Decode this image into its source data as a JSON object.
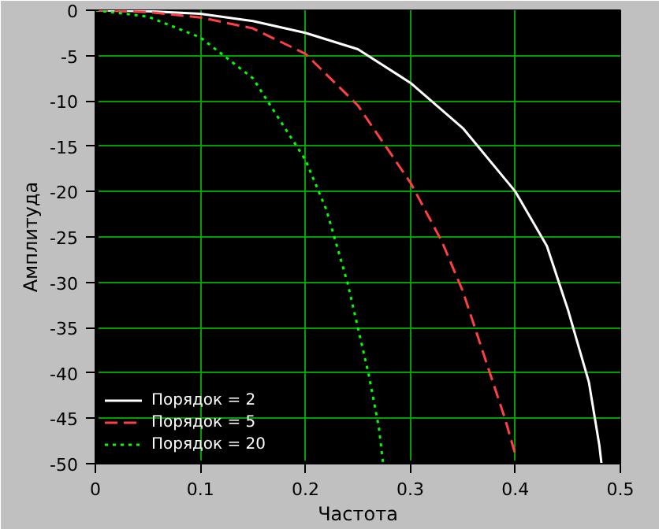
{
  "chart_data": {
    "type": "line",
    "xlabel": "Частота",
    "ylabel": "Амплитуда",
    "xlim": [
      0,
      0.5
    ],
    "ylim": [
      -50,
      0
    ],
    "xticks": [
      0,
      0.1,
      0.2,
      0.3,
      0.4,
      0.5
    ],
    "yticks": [
      -50,
      -45,
      -40,
      -35,
      -30,
      -25,
      -20,
      -15,
      -10,
      -5,
      0
    ],
    "grid": true,
    "legend": "bottom left",
    "series": [
      {
        "name": "Порядок = 2",
        "color": "#ffffff",
        "line_style": "solid",
        "x": [
          0,
          0.05,
          0.1,
          0.15,
          0.2,
          0.25,
          0.3,
          0.35,
          0.4,
          0.43,
          0.45,
          0.47,
          0.48,
          0.482
        ],
        "values": [
          0,
          -0.1,
          -0.4,
          -1.2,
          -2.5,
          -4.3,
          -8,
          -13,
          -20,
          -26,
          -33,
          -41,
          -48,
          -50
        ]
      },
      {
        "name": "Порядок = 5",
        "color": "#ff4040",
        "line_style": "dashed",
        "x": [
          0,
          0.05,
          0.1,
          0.15,
          0.2,
          0.25,
          0.3,
          0.33,
          0.35,
          0.37,
          0.39,
          0.4
        ],
        "values": [
          0,
          -0.2,
          -0.8,
          -2,
          -4.8,
          -10.5,
          -19,
          -25.5,
          -31,
          -38,
          -45,
          -49
        ]
      },
      {
        "name": "Порядок = 20",
        "color": "#00ff00",
        "line_style": "dotted",
        "x": [
          0,
          0.05,
          0.1,
          0.15,
          0.2,
          0.22,
          0.24,
          0.26,
          0.27,
          0.274
        ],
        "values": [
          0,
          -0.7,
          -3,
          -7.5,
          -16.5,
          -22,
          -30,
          -40,
          -46,
          -50
        ]
      }
    ]
  }
}
